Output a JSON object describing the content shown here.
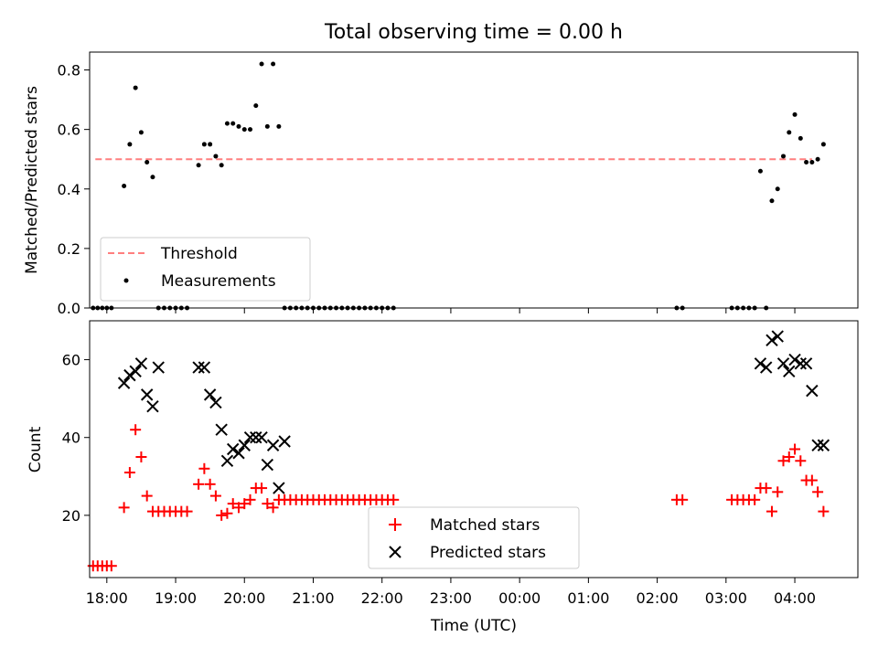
{
  "chart_data": [
    {
      "type": "scatter",
      "title": "Total observing time = 0.00 h",
      "ylabel": "Matched/Predicted stars",
      "xlim": [
        "17:45",
        "04:55"
      ],
      "ylim": [
        0,
        0.86
      ],
      "yticks": [
        "0.0",
        "0.2",
        "0.4",
        "0.6",
        "0.8"
      ],
      "legend_position": "lower-left",
      "grid": false,
      "series": [
        {
          "name": "Threshold",
          "style": "dashed-line",
          "color": "#ff7f7f",
          "x": [
            "17:50",
            "04:15"
          ],
          "y": [
            0.5,
            0.5
          ]
        },
        {
          "name": "Measurements",
          "style": "dot",
          "color": "#000000",
          "x": [
            "17:48",
            "17:52",
            "17:56",
            "18:00",
            "18:04",
            "18:15",
            "18:20",
            "18:25",
            "18:30",
            "18:35",
            "18:40",
            "18:45",
            "18:50",
            "18:55",
            "19:00",
            "19:05",
            "19:10",
            "19:20",
            "19:25",
            "19:30",
            "19:35",
            "19:40",
            "19:45",
            "19:50",
            "19:55",
            "20:00",
            "20:05",
            "20:10",
            "20:15",
            "20:20",
            "20:25",
            "20:30",
            "20:35",
            "20:40",
            "20:45",
            "20:50",
            "20:55",
            "21:00",
            "21:05",
            "21:10",
            "21:15",
            "21:20",
            "21:25",
            "21:30",
            "21:35",
            "21:40",
            "21:45",
            "21:50",
            "21:55",
            "22:00",
            "22:05",
            "22:10",
            "02:17",
            "02:22",
            "03:05",
            "03:10",
            "03:15",
            "03:20",
            "03:25",
            "03:30",
            "03:35",
            "03:40",
            "03:45",
            "03:50",
            "03:55",
            "04:00",
            "04:05",
            "04:10",
            "04:15",
            "04:20",
            "04:25"
          ],
          "y": [
            0,
            0,
            0,
            0,
            0,
            0.41,
            0.55,
            0.74,
            0.59,
            0.49,
            0.44,
            0,
            0,
            0,
            0,
            0,
            0,
            0.48,
            0.55,
            0.55,
            0.51,
            0.48,
            0.62,
            0.62,
            0.61,
            0.6,
            0.6,
            0.68,
            0.82,
            0.61,
            0.82,
            0.61,
            0,
            0,
            0,
            0,
            0,
            0,
            0,
            0,
            0,
            0,
            0,
            0,
            0,
            0,
            0,
            0,
            0,
            0,
            0,
            0,
            0,
            0,
            0,
            0,
            0,
            0,
            0,
            0.46,
            0,
            0.36,
            0.4,
            0.51,
            0.59,
            0.65,
            0.57,
            0.49,
            0.49,
            0.5,
            0.55
          ]
        }
      ]
    },
    {
      "type": "scatter",
      "xlabel": "Time (UTC)",
      "ylabel": "Count",
      "xlim": [
        "17:45",
        "04:55"
      ],
      "ylim": [
        4,
        70
      ],
      "yticks": [
        "20",
        "40",
        "60"
      ],
      "xticks": [
        "18:00",
        "19:00",
        "20:00",
        "21:00",
        "22:00",
        "23:00",
        "00:00",
        "01:00",
        "02:00",
        "03:00",
        "04:00"
      ],
      "legend_position": "lower-center",
      "grid": false,
      "series": [
        {
          "name": "Matched stars",
          "style": "plus",
          "color": "#ff0000",
          "x": [
            "17:48",
            "17:52",
            "17:56",
            "18:00",
            "18:04",
            "18:15",
            "18:20",
            "18:25",
            "18:30",
            "18:35",
            "18:40",
            "18:45",
            "18:50",
            "18:55",
            "19:00",
            "19:05",
            "19:10",
            "19:20",
            "19:25",
            "19:30",
            "19:35",
            "19:40",
            "19:45",
            "19:50",
            "19:55",
            "20:00",
            "20:05",
            "20:10",
            "20:15",
            "20:20",
            "20:25",
            "20:30",
            "20:35",
            "20:40",
            "20:45",
            "20:50",
            "20:55",
            "21:00",
            "21:05",
            "21:10",
            "21:15",
            "21:20",
            "21:25",
            "21:30",
            "21:35",
            "21:40",
            "21:45",
            "21:50",
            "21:55",
            "22:00",
            "22:05",
            "22:10",
            "02:17",
            "02:22",
            "03:05",
            "03:10",
            "03:15",
            "03:20",
            "03:25",
            "03:30",
            "03:35",
            "03:40",
            "03:45",
            "03:50",
            "03:55",
            "04:00",
            "04:05",
            "04:10",
            "04:15",
            "04:20",
            "04:25"
          ],
          "y": [
            7,
            7,
            7,
            7,
            7,
            22,
            31,
            42,
            35,
            25,
            21,
            21,
            21,
            21,
            21,
            21,
            21,
            28,
            32,
            28,
            25,
            20,
            20.5,
            23,
            22,
            23,
            24,
            27,
            27,
            23,
            22,
            24,
            24,
            24,
            24,
            24,
            24,
            24,
            24,
            24,
            24,
            24,
            24,
            24,
            24,
            24,
            24,
            24,
            24,
            24,
            24,
            24,
            24,
            24,
            24,
            24,
            24,
            24,
            24,
            27,
            27,
            21,
            26,
            34,
            35,
            37,
            34,
            29,
            29,
            26,
            21
          ]
        },
        {
          "name": "Predicted stars",
          "style": "x",
          "color": "#000000",
          "x": [
            "18:15",
            "18:20",
            "18:25",
            "18:30",
            "18:35",
            "18:40",
            "18:45",
            "19:20",
            "19:25",
            "19:30",
            "19:35",
            "19:40",
            "19:45",
            "19:50",
            "19:55",
            "20:00",
            "20:05",
            "20:10",
            "20:15",
            "20:20",
            "20:25",
            "20:30",
            "20:35",
            "03:30",
            "03:35",
            "03:40",
            "03:45",
            "03:50",
            "03:55",
            "04:00",
            "04:05",
            "04:10",
            "04:15",
            "04:20",
            "04:25"
          ],
          "y": [
            54,
            56,
            57,
            59,
            51,
            48,
            58,
            58,
            58,
            51,
            49,
            42,
            34,
            37,
            36,
            38,
            40,
            40,
            40,
            33,
            38,
            27,
            39,
            59,
            58,
            65,
            66,
            59,
            57,
            60,
            59,
            59,
            52,
            38,
            38
          ]
        }
      ]
    }
  ]
}
